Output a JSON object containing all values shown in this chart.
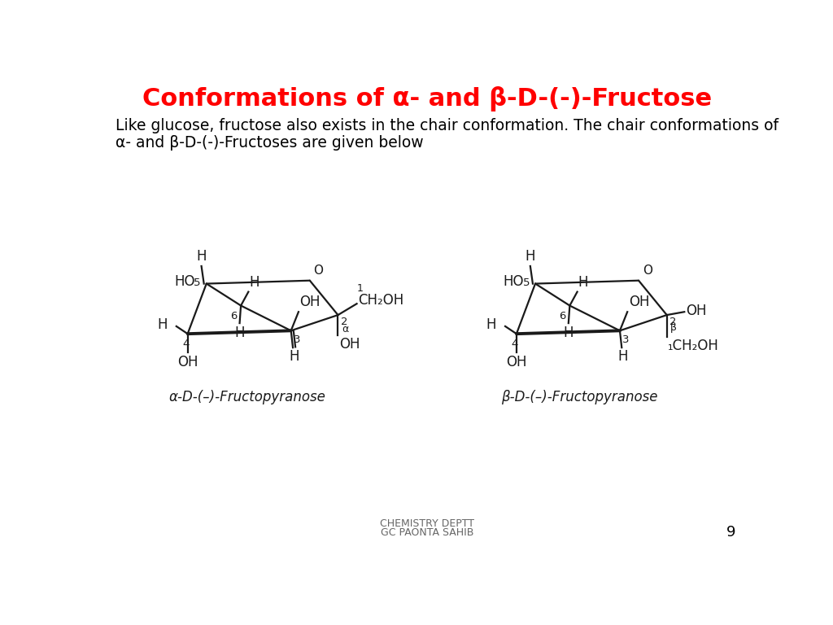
{
  "title": "Conformations of α- and β-D-(-)-Fructose",
  "title_color": "#FF0000",
  "title_fontsize": 22,
  "body_line1": "Like glucose, fructose also exists in the chair conformation. The chair conformations of",
  "body_line2": "α- and β-D-(-)-Fructoses are given below",
  "footer_line1": "CHEMISTRY DEPTT",
  "footer_line2": "GC PAONTA SAHIB",
  "page_number": "9",
  "alpha_label": "α-D-(–)-Fructopyranose",
  "beta_label": "β-D-(–)-Fructopyranose",
  "bg_color": "#FFFFFF",
  "line_color": "#1a1a1a"
}
